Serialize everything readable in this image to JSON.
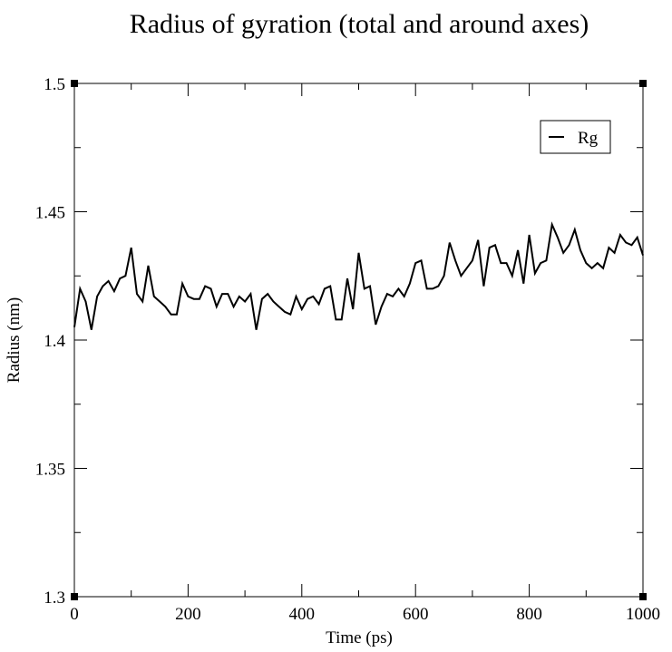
{
  "chart_data": {
    "type": "line",
    "title": "Radius of gyration (total and around axes)",
    "xlabel": "Time (ps)",
    "ylabel": "Radius (nm)",
    "xlim": [
      0,
      1000
    ],
    "ylim": [
      1.3,
      1.5
    ],
    "x_ticks": [
      0,
      200,
      400,
      600,
      800,
      1000
    ],
    "x_tick_labels": [
      "0",
      "200",
      "400",
      "600",
      "800",
      "1000"
    ],
    "y_ticks": [
      1.3,
      1.35,
      1.4,
      1.45,
      1.5
    ],
    "y_tick_labels": [
      "1.3",
      "1.35",
      "1.4",
      "1.45",
      "1.5"
    ],
    "grid": false,
    "legend_position": "top-right",
    "series": [
      {
        "name": "Rg",
        "color": "#000000",
        "x": [
          0,
          10,
          20,
          30,
          40,
          50,
          60,
          70,
          80,
          90,
          100,
          110,
          120,
          130,
          140,
          150,
          160,
          170,
          180,
          190,
          200,
          210,
          220,
          230,
          240,
          250,
          260,
          270,
          280,
          290,
          300,
          310,
          320,
          330,
          340,
          350,
          360,
          370,
          380,
          390,
          400,
          410,
          420,
          430,
          440,
          450,
          460,
          470,
          480,
          490,
          500,
          510,
          520,
          530,
          540,
          550,
          560,
          570,
          580,
          590,
          600,
          610,
          620,
          630,
          640,
          650,
          660,
          670,
          680,
          690,
          700,
          710,
          720,
          730,
          740,
          750,
          760,
          770,
          780,
          790,
          800,
          810,
          820,
          830,
          840,
          850,
          860,
          870,
          880,
          890,
          900,
          910,
          920,
          930,
          940,
          950,
          960,
          970,
          980,
          990,
          1000
        ],
        "y": [
          1.405,
          1.42,
          1.415,
          1.404,
          1.417,
          1.421,
          1.423,
          1.419,
          1.424,
          1.425,
          1.436,
          1.418,
          1.415,
          1.429,
          1.417,
          1.415,
          1.413,
          1.41,
          1.41,
          1.422,
          1.417,
          1.416,
          1.416,
          1.421,
          1.42,
          1.413,
          1.418,
          1.418,
          1.413,
          1.417,
          1.415,
          1.418,
          1.404,
          1.416,
          1.418,
          1.415,
          1.413,
          1.411,
          1.41,
          1.417,
          1.412,
          1.416,
          1.417,
          1.414,
          1.42,
          1.421,
          1.408,
          1.408,
          1.424,
          1.412,
          1.434,
          1.42,
          1.421,
          1.406,
          1.413,
          1.418,
          1.417,
          1.42,
          1.417,
          1.422,
          1.43,
          1.431,
          1.42,
          1.42,
          1.421,
          1.425,
          1.438,
          1.431,
          1.425,
          1.428,
          1.431,
          1.439,
          1.421,
          1.436,
          1.437,
          1.43,
          1.43,
          1.425,
          1.435,
          1.422,
          1.441,
          1.426,
          1.43,
          1.431,
          1.445,
          1.44,
          1.434,
          1.437,
          1.443,
          1.435,
          1.43,
          1.428,
          1.43,
          1.428,
          1.436,
          1.434,
          1.441,
          1.438,
          1.437,
          1.44,
          1.433
        ]
      }
    ]
  }
}
